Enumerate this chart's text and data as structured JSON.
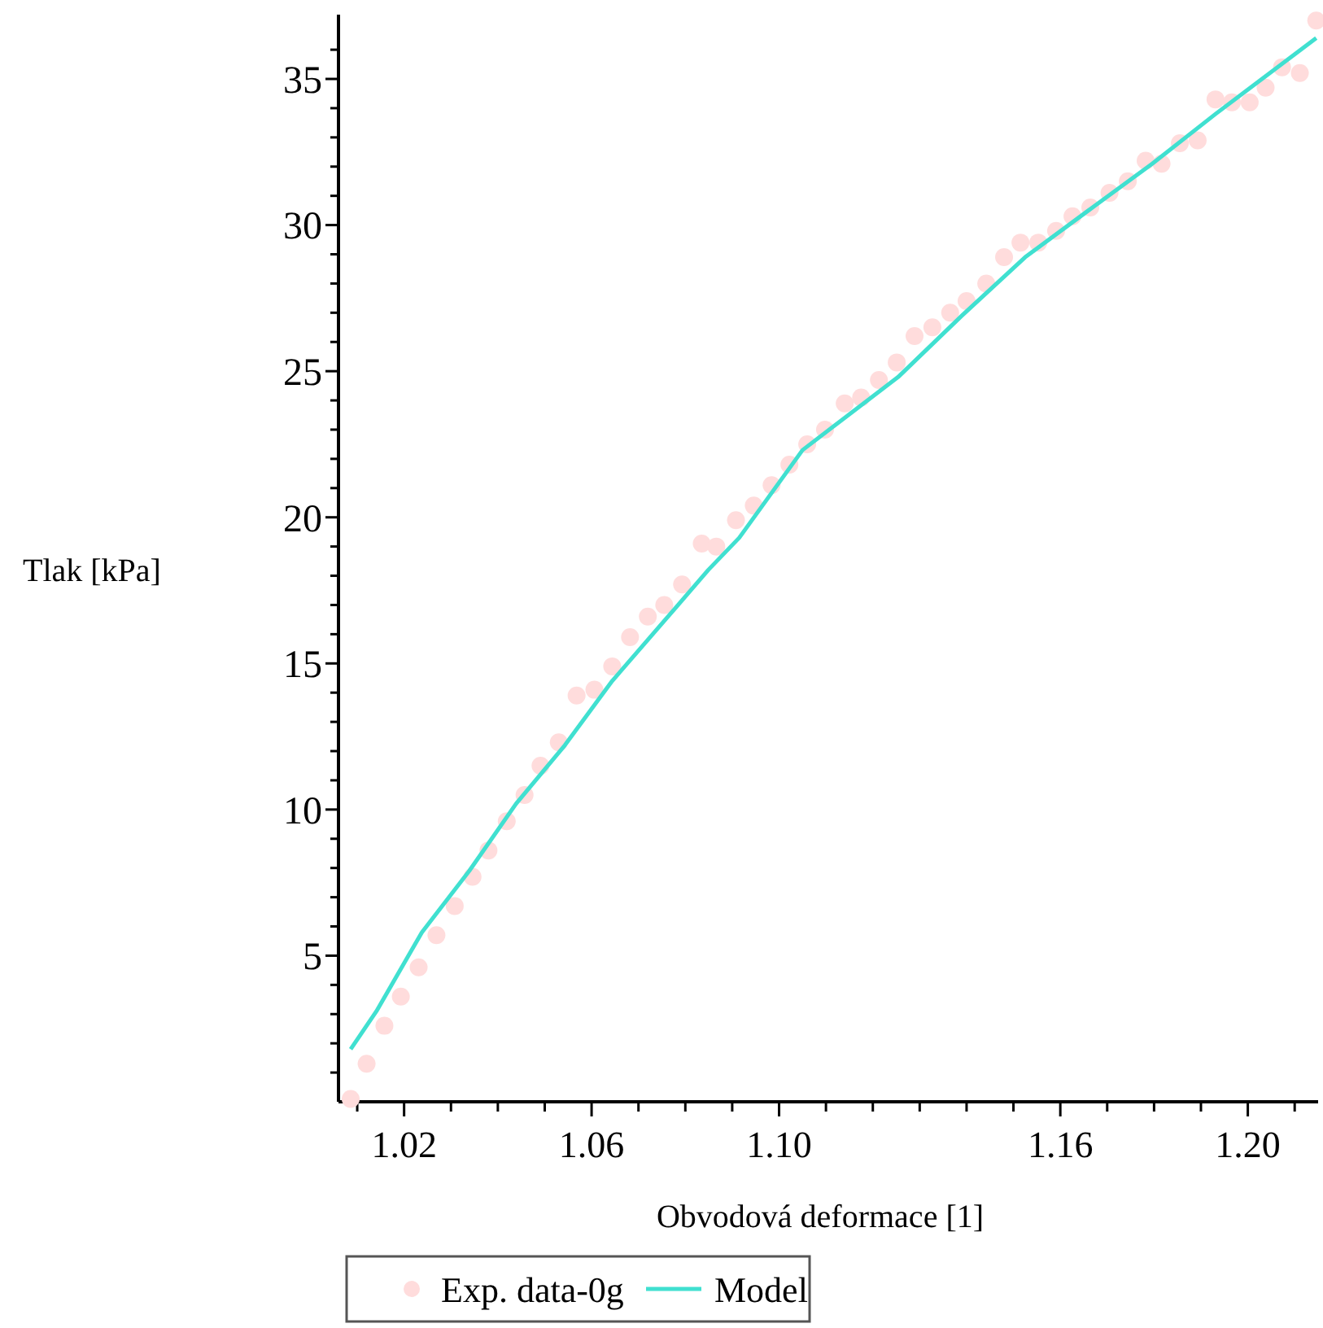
{
  "chart_data": {
    "type": "scatter",
    "xlabel": "Obvodová deformace [1]",
    "ylabel": "Tlak [kPa]",
    "xlim": [
      1.006,
      1.215
    ],
    "ylim": [
      0,
      37.2
    ],
    "xticks": [
      {
        "value": 1.01,
        "label": null
      },
      1.02,
      {
        "value": 1.03,
        "label": null
      },
      {
        "value": 1.04,
        "label": null
      },
      {
        "value": 1.05,
        "label": null
      },
      1.06,
      {
        "value": 1.07,
        "label": null
      },
      {
        "value": 1.08,
        "label": null
      },
      {
        "value": 1.09,
        "label": null
      },
      {
        "value": 1.1,
        "label": "1.10"
      },
      {
        "value": 1.11,
        "label": null
      },
      {
        "value": 1.12,
        "label": null
      },
      {
        "value": 1.13,
        "label": null
      },
      {
        "value": 1.14,
        "label": null
      },
      {
        "value": 1.15,
        "label": null
      },
      1.16,
      {
        "value": 1.17,
        "label": null
      },
      {
        "value": 1.18,
        "label": null
      },
      {
        "value": 1.19,
        "label": null
      },
      {
        "value": 1.2,
        "label": "1.20"
      },
      {
        "value": 1.21,
        "label": null
      }
    ],
    "yticks": [
      {
        "value": 1,
        "label": null
      },
      {
        "value": 2,
        "label": null
      },
      {
        "value": 3,
        "label": null
      },
      {
        "value": 4,
        "label": null
      },
      5,
      {
        "value": 6,
        "label": null
      },
      {
        "value": 7,
        "label": null
      },
      {
        "value": 8,
        "label": null
      },
      {
        "value": 9,
        "label": null
      },
      10,
      {
        "value": 11,
        "label": null
      },
      {
        "value": 12,
        "label": null
      },
      {
        "value": 13,
        "label": null
      },
      {
        "value": 14,
        "label": null
      },
      15,
      {
        "value": 16,
        "label": null
      },
      {
        "value": 17,
        "label": null
      },
      {
        "value": 18,
        "label": null
      },
      {
        "value": 19,
        "label": null
      },
      20,
      {
        "value": 21,
        "label": null
      },
      {
        "value": 22,
        "label": null
      },
      {
        "value": 23,
        "label": null
      },
      {
        "value": 24,
        "label": null
      },
      25,
      {
        "value": 26,
        "label": null
      },
      {
        "value": 27,
        "label": null
      },
      {
        "value": 28,
        "label": null
      },
      {
        "value": 29,
        "label": null
      },
      30,
      {
        "value": 31,
        "label": null
      },
      {
        "value": 32,
        "label": null
      },
      {
        "value": 33,
        "label": null
      },
      {
        "value": 34,
        "label": null
      },
      35,
      {
        "value": 36,
        "label": null
      }
    ],
    "grid": false,
    "legend": "bottom",
    "series": [
      {
        "name": "Exp. data-0g",
        "marker": "circle",
        "color": "#ffdcdc",
        "x": [
          1.0086,
          1.012,
          1.0158,
          1.0193,
          1.0231,
          1.0269,
          1.0308,
          1.0346,
          1.038,
          1.0419,
          1.0457,
          1.0491,
          1.053,
          1.0568,
          1.0606,
          1.0644,
          1.0682,
          1.072,
          1.0755,
          1.0793,
          1.0835,
          1.0866,
          1.0908,
          1.0946,
          1.0984,
          1.1022,
          1.106,
          1.1098,
          1.114,
          1.1175,
          1.1213,
          1.1251,
          1.1289,
          1.1327,
          1.1365,
          1.14,
          1.1442,
          1.148,
          1.1515,
          1.1553,
          1.1591,
          1.1626,
          1.1664,
          1.1705,
          1.1744,
          1.1782,
          1.1816,
          1.1855,
          1.1893,
          1.1931,
          1.1966,
          1.2004,
          1.2038,
          1.2073,
          1.2111,
          1.2146
        ],
        "values": [
          0.1,
          1.3,
          2.6,
          3.6,
          4.6,
          5.7,
          6.7,
          7.7,
          8.6,
          9.6,
          10.5,
          11.5,
          12.3,
          13.9,
          14.1,
          14.9,
          15.9,
          16.6,
          17.0,
          17.7,
          19.1,
          19.0,
          19.9,
          20.4,
          21.1,
          21.8,
          22.5,
          23.0,
          23.9,
          24.1,
          24.7,
          25.3,
          26.2,
          26.5,
          27.0,
          27.4,
          28.0,
          28.9,
          29.4,
          29.4,
          29.8,
          30.3,
          30.6,
          31.1,
          31.5,
          32.2,
          32.1,
          32.8,
          32.9,
          34.3,
          34.2,
          34.2,
          34.7,
          35.4,
          35.2,
          37.0
        ]
      },
      {
        "name": "Model",
        "type": "line",
        "line_style": "solid",
        "color": "#40e0d0",
        "x": [
          1.0086,
          1.0141,
          1.0238,
          1.0339,
          1.0439,
          1.0543,
          1.0644,
          1.0779,
          1.0849,
          1.0915,
          1.105,
          1.1254,
          1.139,
          1.1525,
          1.166,
          1.1796,
          1.1931,
          1.2146
        ],
        "values": [
          1.8,
          3.1,
          5.8,
          7.9,
          10.2,
          12.2,
          14.4,
          16.9,
          18.2,
          19.3,
          22.3,
          24.8,
          26.9,
          28.9,
          30.5,
          32.1,
          33.8,
          36.4
        ]
      }
    ]
  }
}
